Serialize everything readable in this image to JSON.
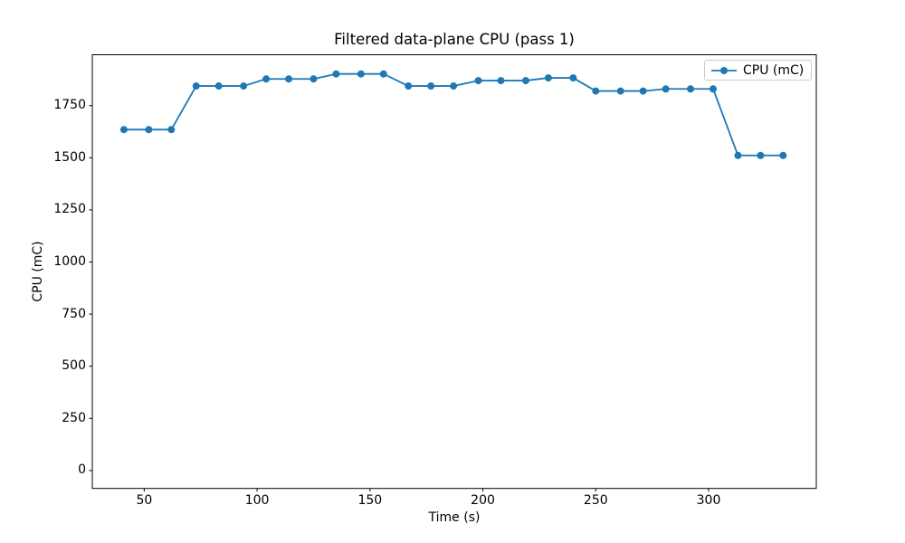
{
  "chart_data": {
    "type": "line",
    "title": "Filtered data-plane CPU (pass 1)",
    "xlabel": "Time (s)",
    "ylabel": "CPU (mC)",
    "xlim": [
      27.0,
      347.7
    ],
    "ylim": [
      -86,
      1994
    ],
    "xticks": [
      50,
      100,
      150,
      200,
      250,
      300
    ],
    "yticks": [
      0,
      250,
      500,
      750,
      1000,
      1250,
      1500,
      1750
    ],
    "grid": false,
    "background": "#ffffff",
    "spine_color": "#000000",
    "legend": {
      "position": "upper right",
      "border_color": "#cccccc",
      "entries": [
        "CPU (mC)"
      ]
    },
    "series": [
      {
        "name": "CPU (mC)",
        "color": "#1f77b4",
        "marker": "circle",
        "marker_radius": 4,
        "line_width": 1.8,
        "x": [
          41,
          52,
          62,
          73,
          83,
          94,
          104,
          114,
          125,
          135,
          146,
          156,
          167,
          177,
          187,
          198,
          208,
          219,
          229,
          240,
          250,
          261,
          271,
          281,
          292,
          302,
          313,
          323,
          333
        ],
        "y": [
          1635,
          1635,
          1635,
          1844,
          1844,
          1844,
          1878,
          1878,
          1878,
          1902,
          1902,
          1902,
          1844,
          1844,
          1844,
          1870,
          1870,
          1870,
          1883,
          1883,
          1820,
          1820,
          1820,
          1830,
          1830,
          1830,
          1511,
          1511,
          1511
        ]
      }
    ]
  }
}
